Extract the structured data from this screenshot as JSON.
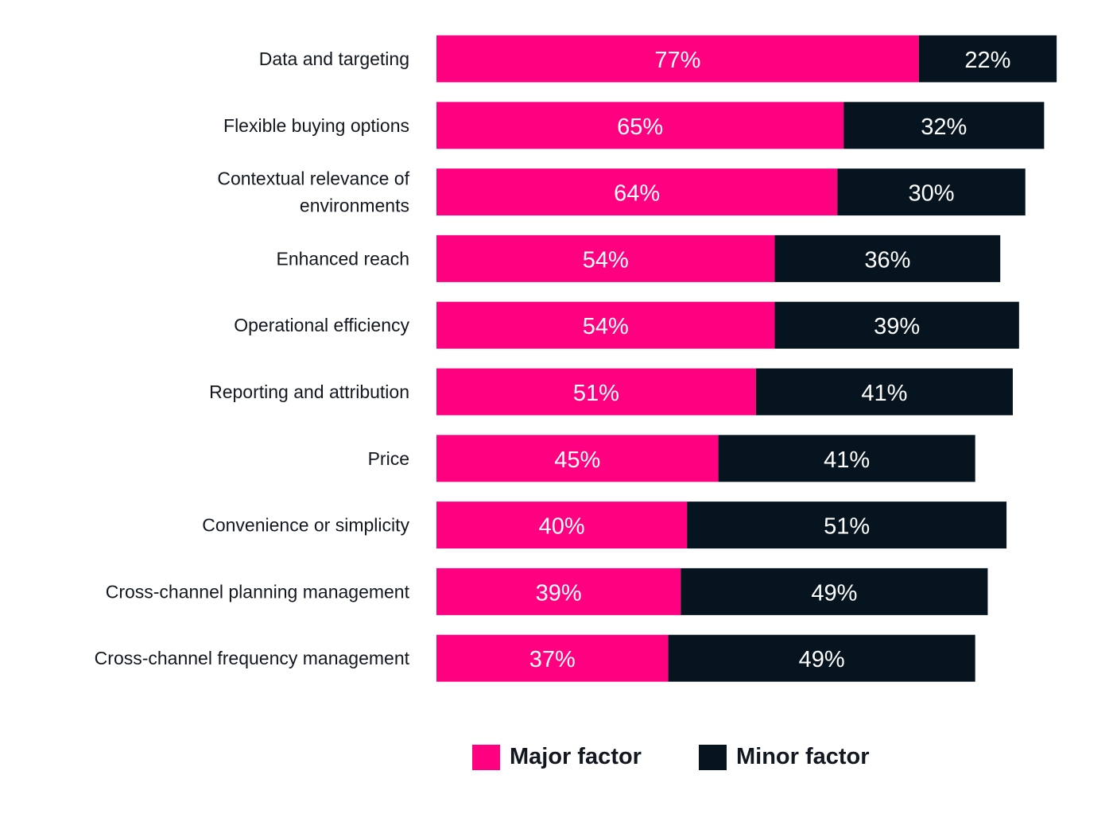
{
  "chart_data": {
    "type": "bar",
    "orientation": "horizontal",
    "stacked": true,
    "categories": [
      [
        "Data and targeting"
      ],
      [
        "Flexible buying options"
      ],
      [
        "Contextual relevance of",
        "environments"
      ],
      [
        "Enhanced reach"
      ],
      [
        "Operational efficiency"
      ],
      [
        "Reporting and attribution"
      ],
      [
        "Price"
      ],
      [
        "Convenience or simplicity"
      ],
      [
        "Cross-channel planning management"
      ],
      [
        "Cross-channel frequency management"
      ]
    ],
    "series": [
      {
        "name": "Major factor",
        "color": "#FF0080",
        "values": [
          77,
          65,
          64,
          54,
          54,
          51,
          45,
          40,
          39,
          37
        ],
        "labels": [
          "77%",
          "65%",
          "64%",
          "54%",
          "54%",
          "51%",
          "45%",
          "40%",
          "39%",
          "37%"
        ]
      },
      {
        "name": "Minor factor",
        "color": "#06141F",
        "values": [
          22,
          32,
          30,
          36,
          39,
          41,
          41,
          51,
          49,
          49
        ],
        "labels": [
          "22%",
          "32%",
          "30%",
          "36%",
          "39%",
          "41%",
          "41%",
          "51%",
          "49%",
          "49%"
        ]
      }
    ],
    "xlim": [
      0,
      100
    ],
    "grid": false,
    "legend_position": "bottom-center",
    "title": "",
    "xlabel": "",
    "ylabel": ""
  },
  "legend": {
    "major_label": "Major factor",
    "minor_label": "Minor factor"
  }
}
